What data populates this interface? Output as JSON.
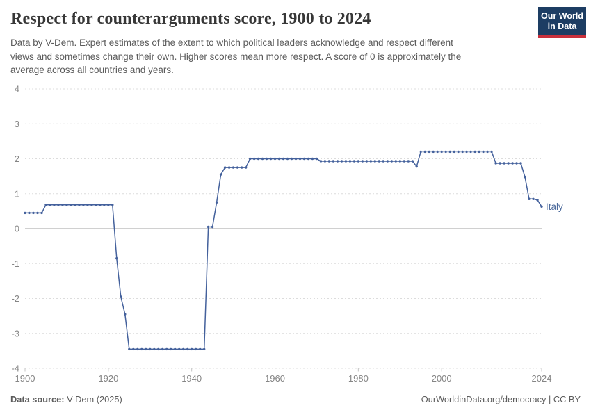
{
  "header": {
    "title": "Respect for counterarguments score, 1900 to 2024",
    "logo": {
      "line1": "Our World",
      "line2": "in Data",
      "bg_color": "#1d3d63",
      "bar_color": "#c9303c"
    },
    "subtitle_lines": [
      "Data by V-Dem. Expert estimates of the extent to which political leaders acknowledge and respect different",
      "views and sometimes change their own. Higher scores mean more respect. A score of 0 is approximately the",
      "average across all countries and years."
    ]
  },
  "footer": {
    "source_label": "Data source:",
    "source_value": " V-Dem (2025)",
    "credit": "OurWorldinData.org/democracy | CC BY"
  },
  "chart_data": {
    "type": "line",
    "title": "Respect for counterarguments score, 1900 to 2024",
    "entity_label": "Italy",
    "x_range": [
      1900,
      2024
    ],
    "xticks": [
      1900,
      1920,
      1940,
      1960,
      1980,
      2000,
      2024
    ],
    "yticks": [
      4,
      3,
      2,
      1,
      0,
      -1,
      -2,
      -3,
      -4
    ],
    "ylim": [
      -4,
      4
    ],
    "grid": "horizontal dashed, solid zero line",
    "legend_position": "end-of-line label",
    "colors": {
      "line": "#44619c",
      "entity_label": "#4c6a9c",
      "grid": "#dcdcdc",
      "zero_line": "#a1a1a1",
      "axis_text": "#858585"
    },
    "series": [
      {
        "name": "Italy",
        "x_start": 1900,
        "values": [
          0.45,
          0.45,
          0.45,
          0.45,
          0.45,
          0.68,
          0.68,
          0.68,
          0.68,
          0.68,
          0.68,
          0.68,
          0.68,
          0.68,
          0.68,
          0.68,
          0.68,
          0.68,
          0.68,
          0.68,
          0.68,
          0.68,
          -0.85,
          -1.95,
          -2.45,
          -3.45,
          -3.45,
          -3.45,
          -3.45,
          -3.45,
          -3.45,
          -3.45,
          -3.45,
          -3.45,
          -3.45,
          -3.45,
          -3.45,
          -3.45,
          -3.45,
          -3.45,
          -3.45,
          -3.45,
          -3.45,
          -3.45,
          0.05,
          0.05,
          0.75,
          1.55,
          1.75,
          1.75,
          1.75,
          1.75,
          1.75,
          1.75,
          2.0,
          2.0,
          2.0,
          2.0,
          2.0,
          2.0,
          2.0,
          2.0,
          2.0,
          2.0,
          2.0,
          2.0,
          2.0,
          2.0,
          2.0,
          2.0,
          2.0,
          1.93,
          1.93,
          1.93,
          1.93,
          1.93,
          1.93,
          1.93,
          1.93,
          1.93,
          1.93,
          1.93,
          1.93,
          1.93,
          1.93,
          1.93,
          1.93,
          1.93,
          1.93,
          1.93,
          1.93,
          1.93,
          1.93,
          1.93,
          1.78,
          2.2,
          2.2,
          2.2,
          2.2,
          2.2,
          2.2,
          2.2,
          2.2,
          2.2,
          2.2,
          2.2,
          2.2,
          2.2,
          2.2,
          2.2,
          2.2,
          2.2,
          2.2,
          1.87,
          1.87,
          1.87,
          1.87,
          1.87,
          1.87,
          1.87,
          1.48,
          0.85,
          0.85,
          0.82,
          0.63
        ]
      }
    ]
  }
}
